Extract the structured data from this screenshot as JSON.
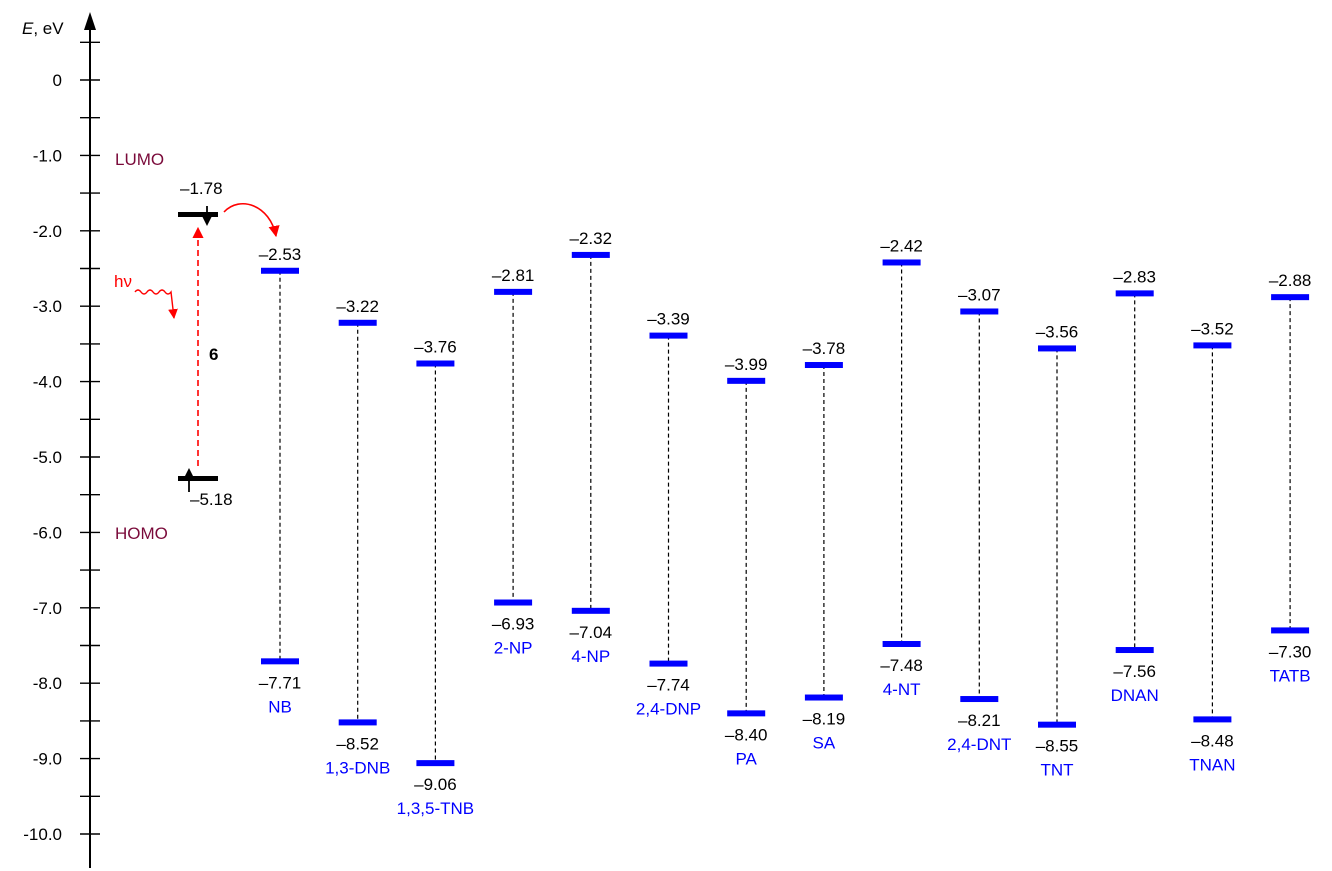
{
  "axis": {
    "label_var": "E",
    "label_unit": ", eV",
    "ticks": [
      {
        "value": 0,
        "label": "0"
      },
      {
        "value": -1,
        "label": "-1.0"
      },
      {
        "value": -2,
        "label": "-2.0"
      },
      {
        "value": -3,
        "label": "-3.0"
      },
      {
        "value": -4,
        "label": "-4.0"
      },
      {
        "value": -5,
        "label": "-5.0"
      },
      {
        "value": -6,
        "label": "-6.0"
      },
      {
        "value": -7,
        "label": "-7.0"
      },
      {
        "value": -8,
        "label": "-8.0"
      },
      {
        "value": -9,
        "label": "-9.0"
      },
      {
        "value": -10,
        "label": "-10.0"
      }
    ]
  },
  "labels": {
    "lumo": "LUMO",
    "homo": "HOMO",
    "hv": "hν"
  },
  "sensor": {
    "id": "6",
    "lumo": -1.78,
    "lumo_label": "–1.78",
    "homo": -5.18,
    "homo_label": "–5.18"
  },
  "analytes": [
    {
      "name": "NB",
      "lumo": -2.53,
      "lumo_label": "–2.53",
      "homo": -7.71,
      "homo_label": "–7.71"
    },
    {
      "name": "1,3-DNB",
      "lumo": -3.22,
      "lumo_label": "–3.22",
      "homo": -8.52,
      "homo_label": "–8.52"
    },
    {
      "name": "1,3,5-TNB",
      "lumo": -3.76,
      "lumo_label": "–3.76",
      "homo": -9.06,
      "homo_label": "–9.06"
    },
    {
      "name": "2-NP",
      "lumo": -2.81,
      "lumo_label": "–2.81",
      "homo": -6.93,
      "homo_label": "–6.93"
    },
    {
      "name": "4-NP",
      "lumo": -2.32,
      "lumo_label": "–2.32",
      "homo": -7.04,
      "homo_label": "–7.04"
    },
    {
      "name": "2,4-DNP",
      "lumo": -3.39,
      "lumo_label": "–3.39",
      "homo": -7.74,
      "homo_label": "–7.74"
    },
    {
      "name": "PA",
      "lumo": -3.99,
      "lumo_label": "–3.99",
      "homo": -8.4,
      "homo_label": "–8.40"
    },
    {
      "name": "SA",
      "lumo": -3.78,
      "lumo_label": "–3.78",
      "homo": -8.19,
      "homo_label": "–8.19"
    },
    {
      "name": "4-NT",
      "lumo": -2.42,
      "lumo_label": "–2.42",
      "homo": -7.48,
      "homo_label": "–7.48"
    },
    {
      "name": "2,4-DNT",
      "lumo": -3.07,
      "lumo_label": "–3.07",
      "homo": -8.21,
      "homo_label": "–8.21"
    },
    {
      "name": "TNT",
      "lumo": -3.56,
      "lumo_label": "–3.56",
      "homo": -8.55,
      "homo_label": "–8.55"
    },
    {
      "name": "DNAN",
      "lumo": -2.83,
      "lumo_label": "–2.83",
      "homo": -7.56,
      "homo_label": "–7.56"
    },
    {
      "name": "TNAN",
      "lumo": -3.52,
      "lumo_label": "–3.52",
      "homo": -8.48,
      "homo_label": "–8.48"
    },
    {
      "name": "TATB",
      "lumo": -2.88,
      "lumo_label": "–2.88",
      "homo": -7.3,
      "homo_label": "–7.30"
    }
  ],
  "colors": {
    "level": "#0000ff",
    "sensor_level": "#000000",
    "excitation": "#ff0000",
    "lumo_homo_text": "#7a0a3a",
    "name_text": "#0000ff"
  }
}
